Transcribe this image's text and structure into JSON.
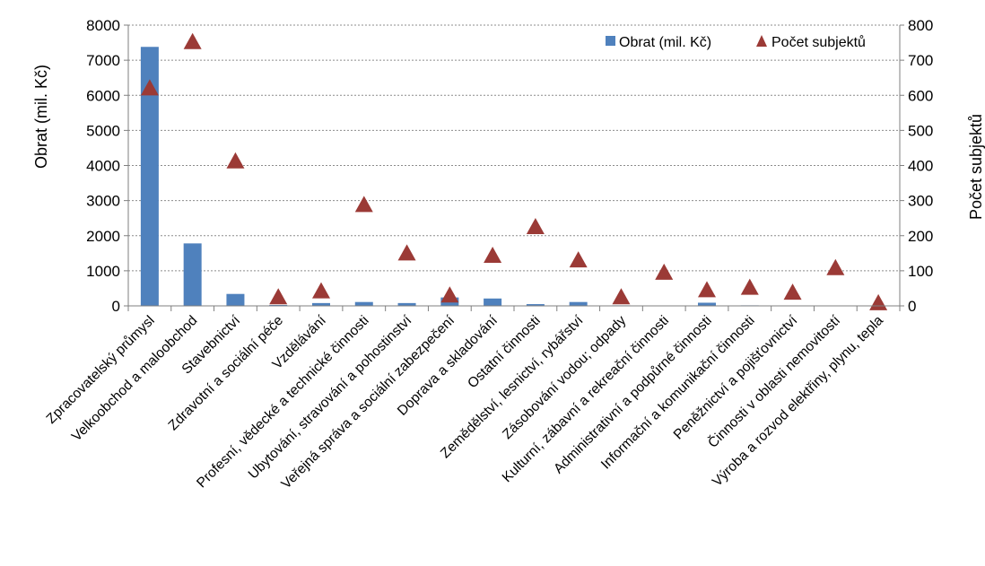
{
  "chart_data": {
    "type": "bar",
    "categories": [
      "Zpracovatelský průmysl",
      "Velkoobchod a maloobchod",
      "Stavebnictví",
      "Zdravotní a sociální péče",
      "Vzdělávání",
      "Profesní, vědecké a technické činnosti",
      "Ubytování, stravování a pohostinství",
      "Veřejná správa a sociální zabezpečení",
      "Doprava a skladování",
      "Ostatní činnosti",
      "Zemědělství, lesnictví, rybářství",
      "Zásobování vodou; odpady",
      "Kulturní, zábavní a rekreační činnosti",
      "Administrativní a podpůrné činnosti",
      "Informační a komunikační činnosti",
      "Peněžnictví a pojišťovnictví",
      "Činnosti v oblasti nemovitostí",
      "Výroba a rozvod elektřiny, plynu, tepla"
    ],
    "series": [
      {
        "name": "Obrat (mil. Kč)",
        "type": "bar",
        "axis": "left",
        "color": "#4f81bd",
        "values": [
          7380,
          1780,
          340,
          25,
          80,
          110,
          80,
          240,
          210,
          50,
          110,
          15,
          8,
          90,
          15,
          10,
          5,
          5
        ]
      },
      {
        "name": "Počet subjektů",
        "type": "scatter",
        "marker": "triangle",
        "axis": "right",
        "color": "#9b3a36",
        "values": [
          620,
          752,
          412,
          25,
          42,
          288,
          150,
          30,
          143,
          225,
          130,
          25,
          95,
          45,
          52,
          38,
          108,
          8
        ]
      }
    ],
    "ylabel": "Obrat (mil. Kč)",
    "y2label": "Počet subjektů",
    "ylim": [
      0,
      8000
    ],
    "y2lim": [
      0,
      800
    ],
    "yticks": [
      "0",
      "1000",
      "2000",
      "3000",
      "4000",
      "5000",
      "6000",
      "7000",
      "8000"
    ],
    "y2ticks": [
      "0",
      "100",
      "200",
      "300",
      "400",
      "500",
      "600",
      "700",
      "800"
    ],
    "grid": true,
    "legend": "top-right"
  }
}
